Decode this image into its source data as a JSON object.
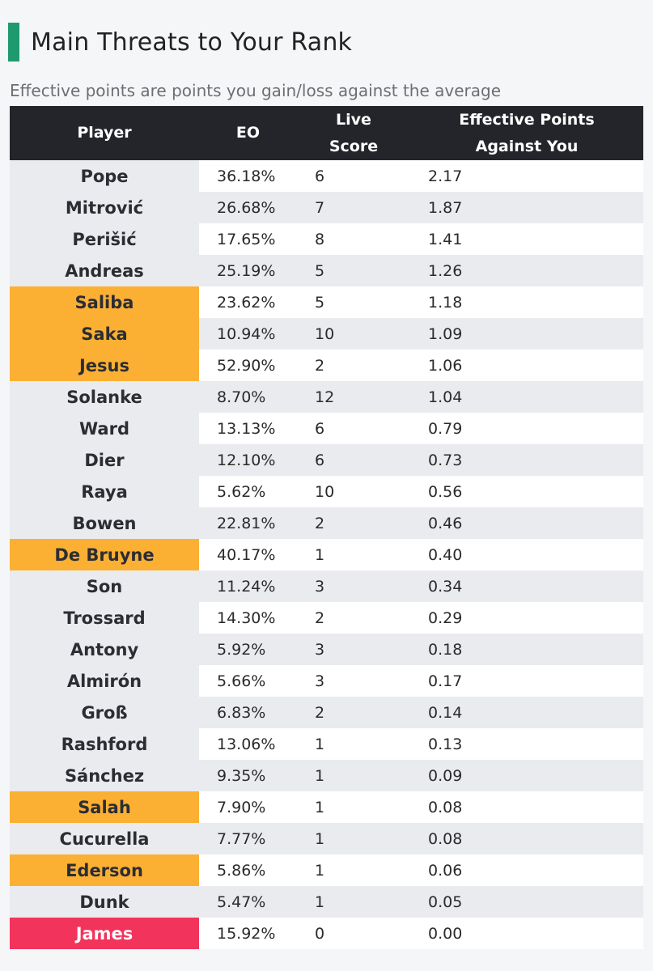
{
  "title": "Main Threats to Your Rank",
  "subtitle": "Effective points are points you gain/loss against the average",
  "colors": {
    "accent": "#1f9a6e",
    "header_bg": "#23252b",
    "highlight_orange": "#fbb034",
    "highlight_red": "#f2335b"
  },
  "table": {
    "headers": [
      "Player",
      "EO",
      "Live Score",
      "Effective Points Against You"
    ],
    "header_lines": {
      "player": "Player",
      "eo": "EO",
      "live_1": "Live",
      "live_2": "Score",
      "eff_1": "Effective Points",
      "eff_2": "Against You"
    },
    "rows": [
      {
        "player": "Pope",
        "eo": "36.18%",
        "live": "6",
        "eff": "2.17",
        "highlight": ""
      },
      {
        "player": "Mitrović",
        "eo": "26.68%",
        "live": "7",
        "eff": "1.87",
        "highlight": ""
      },
      {
        "player": "Perišić",
        "eo": "17.65%",
        "live": "8",
        "eff": "1.41",
        "highlight": ""
      },
      {
        "player": "Andreas",
        "eo": "25.19%",
        "live": "5",
        "eff": "1.26",
        "highlight": ""
      },
      {
        "player": "Saliba",
        "eo": "23.62%",
        "live": "5",
        "eff": "1.18",
        "highlight": "orange"
      },
      {
        "player": "Saka",
        "eo": "10.94%",
        "live": "10",
        "eff": "1.09",
        "highlight": "orange"
      },
      {
        "player": "Jesus",
        "eo": "52.90%",
        "live": "2",
        "eff": "1.06",
        "highlight": "orange"
      },
      {
        "player": "Solanke",
        "eo": "8.70%",
        "live": "12",
        "eff": "1.04",
        "highlight": ""
      },
      {
        "player": "Ward",
        "eo": "13.13%",
        "live": "6",
        "eff": "0.79",
        "highlight": ""
      },
      {
        "player": "Dier",
        "eo": "12.10%",
        "live": "6",
        "eff": "0.73",
        "highlight": ""
      },
      {
        "player": "Raya",
        "eo": "5.62%",
        "live": "10",
        "eff": "0.56",
        "highlight": ""
      },
      {
        "player": "Bowen",
        "eo": "22.81%",
        "live": "2",
        "eff": "0.46",
        "highlight": ""
      },
      {
        "player": "De Bruyne",
        "eo": "40.17%",
        "live": "1",
        "eff": "0.40",
        "highlight": "orange"
      },
      {
        "player": "Son",
        "eo": "11.24%",
        "live": "3",
        "eff": "0.34",
        "highlight": ""
      },
      {
        "player": "Trossard",
        "eo": "14.30%",
        "live": "2",
        "eff": "0.29",
        "highlight": ""
      },
      {
        "player": "Antony",
        "eo": "5.92%",
        "live": "3",
        "eff": "0.18",
        "highlight": ""
      },
      {
        "player": "Almirón",
        "eo": "5.66%",
        "live": "3",
        "eff": "0.17",
        "highlight": ""
      },
      {
        "player": "Groß",
        "eo": "6.83%",
        "live": "2",
        "eff": "0.14",
        "highlight": ""
      },
      {
        "player": "Rashford",
        "eo": "13.06%",
        "live": "1",
        "eff": "0.13",
        "highlight": ""
      },
      {
        "player": "Sánchez",
        "eo": "9.35%",
        "live": "1",
        "eff": "0.09",
        "highlight": ""
      },
      {
        "player": "Salah",
        "eo": "7.90%",
        "live": "1",
        "eff": "0.08",
        "highlight": "orange"
      },
      {
        "player": "Cucurella",
        "eo": "7.77%",
        "live": "1",
        "eff": "0.08",
        "highlight": ""
      },
      {
        "player": "Ederson",
        "eo": "5.86%",
        "live": "1",
        "eff": "0.06",
        "highlight": "orange"
      },
      {
        "player": "Dunk",
        "eo": "5.47%",
        "live": "1",
        "eff": "0.05",
        "highlight": ""
      },
      {
        "player": "James",
        "eo": "15.92%",
        "live": "0",
        "eff": "0.00",
        "highlight": "red"
      }
    ]
  }
}
